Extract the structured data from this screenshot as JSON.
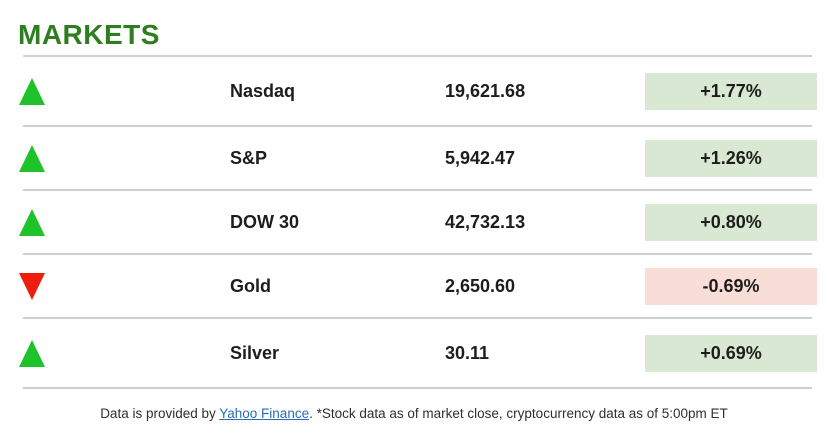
{
  "header": {
    "title": "MARKETS"
  },
  "table": {
    "rows": [
      {
        "name": "Nasdaq",
        "value": "19,621.68",
        "change": "+1.77%",
        "direction": "up"
      },
      {
        "name": "S&P",
        "value": "5,942.47",
        "change": "+1.26%",
        "direction": "up"
      },
      {
        "name": "DOW 30",
        "value": "42,732.13",
        "change": "+0.80%",
        "direction": "up"
      },
      {
        "name": "Gold",
        "value": "2,650.60",
        "change": "-0.69%",
        "direction": "down"
      },
      {
        "name": "Silver",
        "value": "30.11",
        "change": "+0.69%",
        "direction": "up"
      }
    ]
  },
  "footer": {
    "text_before_link": "Data is provided by ",
    "link_text": "Yahoo Finance",
    "text_after_link": ". *Stock data as of market close, cryptocurrency data as of 5:00pm ET"
  },
  "colors": {
    "title_green": "#2e7d1f",
    "triangle_up": "#1ec32b",
    "triangle_down": "#ee1d10",
    "badge_up_bg": "#d9e8d2",
    "badge_down_bg": "#f9ded8",
    "divider_gray": "#cfcfcf",
    "link_blue": "#2a6db5"
  }
}
